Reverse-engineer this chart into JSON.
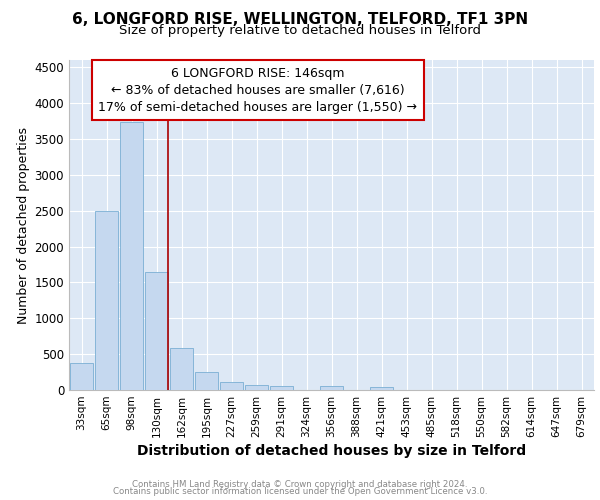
{
  "title1": "6, LONGFORD RISE, WELLINGTON, TELFORD, TF1 3PN",
  "title2": "Size of property relative to detached houses in Telford",
  "xlabel": "Distribution of detached houses by size in Telford",
  "ylabel": "Number of detached properties",
  "footnote1": "Contains HM Land Registry data © Crown copyright and database right 2024.",
  "footnote2": "Contains public sector information licensed under the Open Government Licence v3.0.",
  "annotation_title": "6 LONGFORD RISE: 146sqm",
  "annotation_line1": "← 83% of detached houses are smaller (7,616)",
  "annotation_line2": "17% of semi-detached houses are larger (1,550) →",
  "categories": [
    "33sqm",
    "65sqm",
    "98sqm",
    "130sqm",
    "162sqm",
    "195sqm",
    "227sqm",
    "259sqm",
    "291sqm",
    "324sqm",
    "356sqm",
    "388sqm",
    "421sqm",
    "453sqm",
    "485sqm",
    "518sqm",
    "550sqm",
    "582sqm",
    "614sqm",
    "647sqm",
    "679sqm"
  ],
  "values": [
    380,
    2500,
    3730,
    1640,
    590,
    245,
    110,
    65,
    55,
    0,
    55,
    0,
    45,
    0,
    0,
    0,
    0,
    0,
    0,
    0,
    0
  ],
  "bar_color": "#c5d8ef",
  "bar_edge_color": "#7aafd4",
  "vline_color": "#aa0000",
  "ylim": [
    0,
    4600
  ],
  "yticks": [
    0,
    500,
    1000,
    1500,
    2000,
    2500,
    3000,
    3500,
    4000,
    4500
  ],
  "bg_color": "#dde8f5",
  "grid_color": "#ffffff",
  "title_fontsize": 11,
  "subtitle_fontsize": 9.5,
  "annot_fontsize": 9,
  "xlabel_fontsize": 10,
  "ylabel_fontsize": 9
}
